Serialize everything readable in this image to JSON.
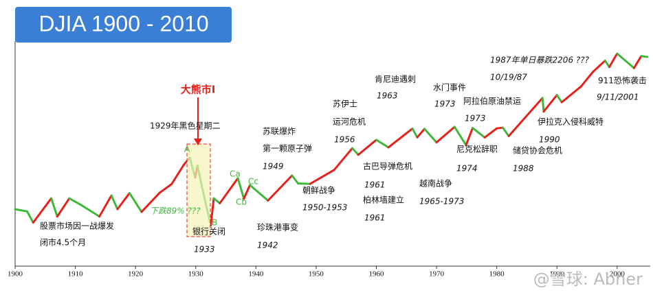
{
  "chart_data": {
    "type": "line",
    "title": "DJIA 1900 - 2010",
    "log_scale": true,
    "xlim": [
      1900,
      2005.5
    ],
    "ylim": [
      30,
      20000
    ],
    "xticks": [
      1900,
      1910,
      1920,
      1930,
      1940,
      1950,
      1960,
      1970,
      1980,
      1990,
      2000
    ],
    "colors": {
      "up": "#e8201a",
      "down": "#3fb83a"
    },
    "x": [
      1900,
      1902,
      1903,
      1906,
      1907,
      1909,
      1911,
      1914,
      1916,
      1917,
      1919,
      1921,
      1924,
      1926,
      1928,
      1929,
      1929.9,
      1930.3,
      1931,
      1932.5,
      1933,
      1934,
      1937,
      1938,
      1939,
      1942,
      1946,
      1947,
      1949,
      1953,
      1956,
      1957,
      1960,
      1962,
      1966,
      1966.8,
      1968,
      1970,
      1973,
      1974.9,
      1976,
      1978,
      1980,
      1981,
      1982,
      1987.6,
      1987.8,
      1990,
      1990.8,
      1994,
      1996,
      1998,
      1998.7,
      2000,
      2002.8,
      2004,
      2005
    ],
    "values": [
      70,
      65,
      45,
      100,
      55,
      100,
      80,
      55,
      110,
      70,
      119,
      64,
      120,
      160,
      300,
      381,
      199,
      294,
      150,
      41,
      100,
      85,
      194,
      99,
      155,
      93,
      212,
      163,
      161,
      255,
      520,
      420,
      685,
      535,
      995,
      744,
      985,
      631,
      1051,
      577,
      1014,
      742,
      1000,
      1024,
      777,
      2722,
      1738,
      2999,
      2365,
      3978,
      6448,
      9300,
      7539,
      11723,
      7286,
      10800,
      10500
    ],
    "annotations": {
      "bear": "大熊市I",
      "drop": "下跌89% ???",
      "a": "A",
      "b": "B",
      "ca": "Ca",
      "cb": "Cb",
      "cc": "Cc",
      "ww1": "股票市场因一战爆发",
      "ww1b": "闭市4.5个月",
      "crash29": "1929年黑色星期二",
      "bank": "银行关闭",
      "y1933": "1933",
      "pearl": "珍珠港事变",
      "y1942": "1942",
      "soviet1": "苏联爆炸",
      "soviet2": "第一颗原子弹",
      "y1949": "1949",
      "korea": "朝鲜战争",
      "y1950": "1950-1953",
      "suez1": "苏伊士",
      "suez2": "运河危机",
      "y1956": "1956",
      "cuba": "古巴导弹危机",
      "y1961a": "1961",
      "wall": "柏林墙建立",
      "y1961b": "1961",
      "jfk": "肯尼迪遇刺",
      "y1963": "1963",
      "vietnam": "越南战争",
      "y1965": "1965-1973",
      "watergate": "水门事件",
      "y1973a": "1973",
      "oil": "阿拉伯原油禁运",
      "y1973b": "1973",
      "nixon": "尼克松辞职",
      "y1974": "1974",
      "sl": "储贷协会危机",
      "y1988": "1988",
      "crash87": "1987年单日暴跌2206 ???",
      "d87": "10/19/87",
      "iraq": "伊拉克入侵科威特",
      "y1990": "1990",
      "sept11": "911恐怖袭击",
      "d911": "9/11/2001",
      "watermark": "@雪球: Abner"
    }
  }
}
